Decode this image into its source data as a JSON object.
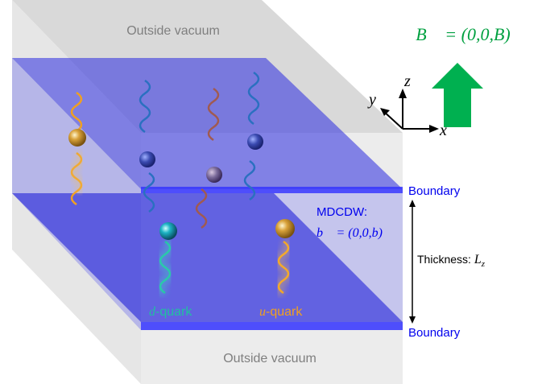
{
  "top_region": "Outside vacuum",
  "bottom_region": "Outside vacuum",
  "field_label": "B⃗ = (0,0,B)",
  "axes": {
    "z": "z",
    "y": "y",
    "x": "x"
  },
  "boundary_top": "Boundary",
  "boundary_bottom": "Boundary",
  "phase": {
    "name": "MDCDW:",
    "vector": "b⃗ = (0,0,b)"
  },
  "thickness": {
    "text": "Thickness:",
    "symbol": "L",
    "subscript": "z"
  },
  "quarks": [
    {
      "symbol": "d",
      "suffix": "-quark"
    },
    {
      "symbol": "u",
      "suffix": "-quark"
    }
  ]
}
